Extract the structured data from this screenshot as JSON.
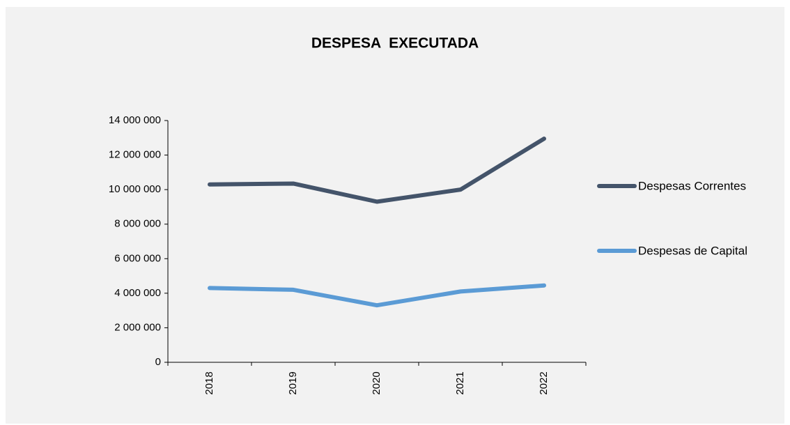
{
  "chart_data": {
    "type": "line",
    "title": "DESPESA  EXECUTADA",
    "categories": [
      "2018",
      "2019",
      "2020",
      "2021",
      "2022"
    ],
    "series": [
      {
        "name": "Despesas Correntes",
        "color": "#44546a",
        "values": [
          10300000,
          10350000,
          9300000,
          10000000,
          12950000
        ]
      },
      {
        "name": "Despesas de Capital",
        "color": "#5b9bd5",
        "values": [
          4300000,
          4200000,
          3300000,
          4100000,
          4450000
        ]
      }
    ],
    "ylim": [
      0,
      14000000
    ],
    "yticks": [
      0,
      {
        "value": 2000000,
        "label": "2 000 000"
      },
      {
        "value": 4000000,
        "label": "4 000 000"
      },
      {
        "value": 6000000,
        "label": "6 000 000"
      },
      {
        "value": 8000000,
        "label": "8 000 000"
      },
      {
        "value": 10000000,
        "label": "10 000 000"
      },
      {
        "value": 12000000,
        "label": "12 000 000"
      },
      {
        "value": 14000000,
        "label": "14 000 000"
      }
    ],
    "legend": "right",
    "grid": false
  }
}
